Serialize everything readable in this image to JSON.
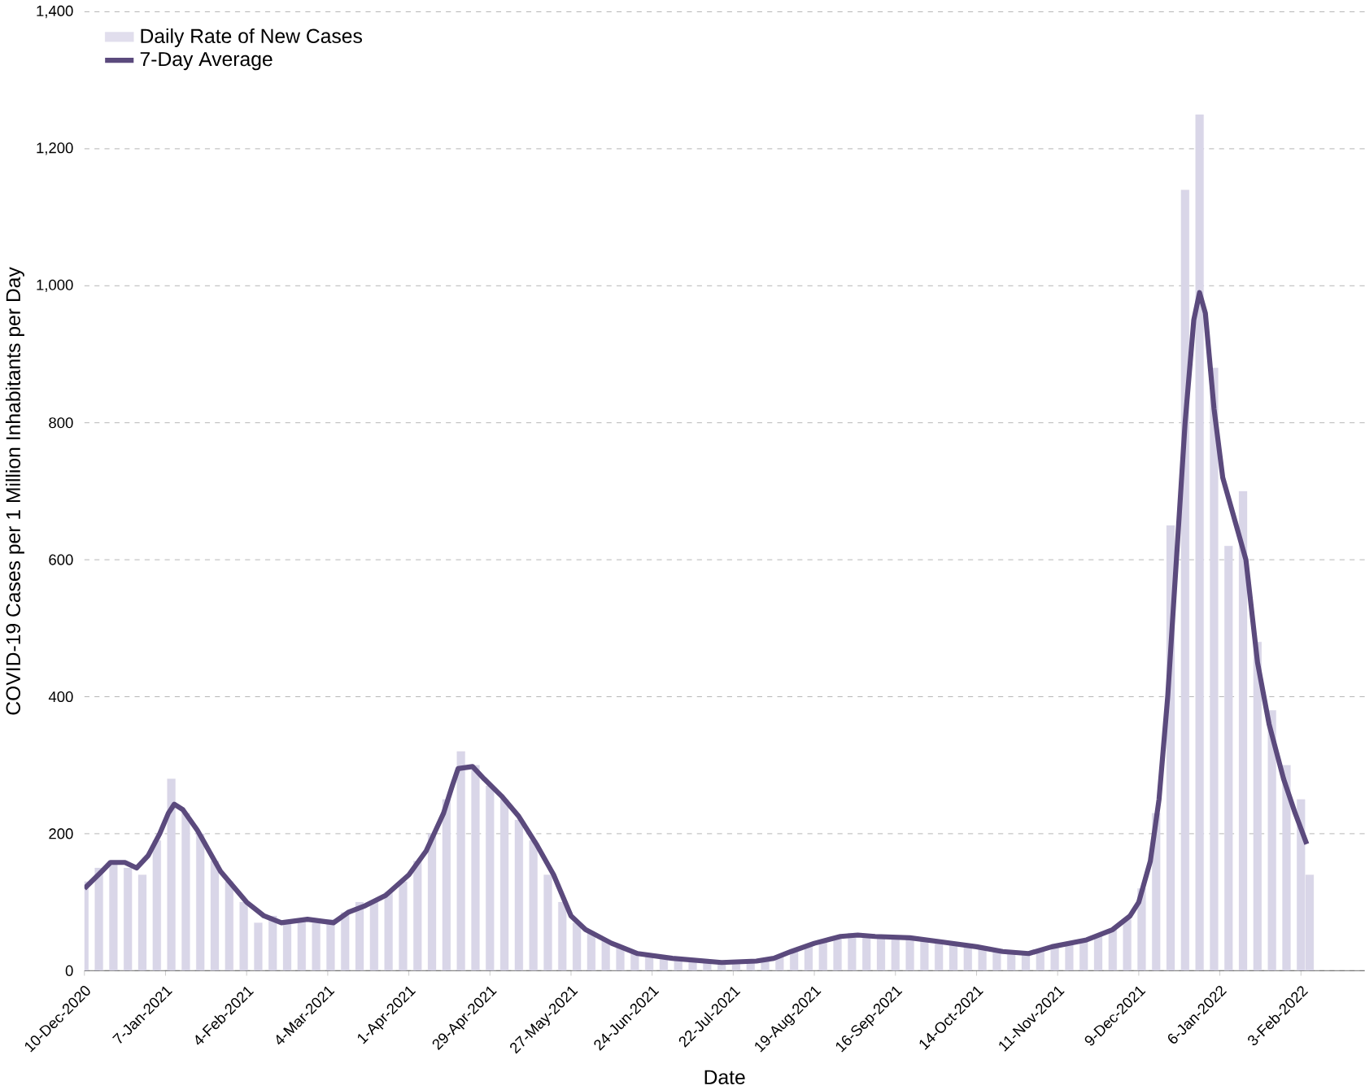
{
  "chart_data": {
    "type": "bar",
    "xlabel": "Date",
    "ylabel": "COVID-19 Cases per 1 Million Inhabitants per Day",
    "xlim": [
      "2020-12-10",
      "2022-02-25"
    ],
    "xticks": [
      {
        "value": "2020-12-10",
        "label": "10-Dec-2020"
      },
      {
        "value": "2021-01-07",
        "label": "7-Jan-2021"
      },
      {
        "value": "2021-02-04",
        "label": "4-Feb-2021"
      },
      {
        "value": "2021-03-04",
        "label": "4-Mar-2021"
      },
      {
        "value": "2021-04-01",
        "label": "1-Apr-2021"
      },
      {
        "value": "2021-04-29",
        "label": "29-Apr-2021"
      },
      {
        "value": "2021-05-27",
        "label": "27-May-2021"
      },
      {
        "value": "2021-06-24",
        "label": "24-Jun-2021"
      },
      {
        "value": "2021-07-22",
        "label": "22-Jul-2021"
      },
      {
        "value": "2021-08-19",
        "label": "19-Aug-2021"
      },
      {
        "value": "2021-09-16",
        "label": "16-Sep-2021"
      },
      {
        "value": "2021-10-14",
        "label": "14-Oct-2021"
      },
      {
        "value": "2021-11-11",
        "label": "11-Nov-2021"
      },
      {
        "value": "2021-12-09",
        "label": "9-Dec-2021"
      },
      {
        "value": "2022-01-06",
        "label": "6-Jan-2022"
      },
      {
        "value": "2022-02-03",
        "label": "3-Feb-2022"
      }
    ],
    "ylim": [
      0,
      1400
    ],
    "yticks": [
      0,
      200,
      400,
      600,
      800,
      {
        "value": 1000,
        "label": "1,000"
      },
      {
        "value": 1200,
        "label": "1,200"
      },
      {
        "value": 1400,
        "label": "1,400"
      }
    ],
    "grid": "y",
    "legend": "top left",
    "x": [
      "2020-12-10",
      "2020-12-15",
      "2020-12-20",
      "2020-12-25",
      "2020-12-30",
      "2021-01-04",
      "2021-01-09",
      "2021-01-14",
      "2021-01-19",
      "2021-01-24",
      "2021-01-29",
      "2021-02-03",
      "2021-02-08",
      "2021-02-13",
      "2021-02-18",
      "2021-02-23",
      "2021-02-28",
      "2021-03-05",
      "2021-03-10",
      "2021-03-15",
      "2021-03-20",
      "2021-03-25",
      "2021-03-30",
      "2021-04-04",
      "2021-04-09",
      "2021-04-14",
      "2021-04-19",
      "2021-04-24",
      "2021-04-29",
      "2021-05-04",
      "2021-05-09",
      "2021-05-14",
      "2021-05-19",
      "2021-05-24",
      "2021-05-29",
      "2021-06-03",
      "2021-06-08",
      "2021-06-13",
      "2021-06-18",
      "2021-06-23",
      "2021-06-28",
      "2021-07-03",
      "2021-07-08",
      "2021-07-13",
      "2021-07-18",
      "2021-07-23",
      "2021-07-28",
      "2021-08-02",
      "2021-08-07",
      "2021-08-12",
      "2021-08-17",
      "2021-08-22",
      "2021-08-27",
      "2021-09-01",
      "2021-09-06",
      "2021-09-11",
      "2021-09-16",
      "2021-09-21",
      "2021-09-26",
      "2021-10-01",
      "2021-10-06",
      "2021-10-11",
      "2021-10-16",
      "2021-10-21",
      "2021-10-26",
      "2021-10-31",
      "2021-11-05",
      "2021-11-10",
      "2021-11-15",
      "2021-11-20",
      "2021-11-25",
      "2021-11-30",
      "2021-12-05",
      "2021-12-10",
      "2021-12-15",
      "2021-12-20",
      "2021-12-25",
      "2021-12-30",
      "2022-01-04",
      "2022-01-09",
      "2022-01-14",
      "2022-01-19",
      "2022-01-24",
      "2022-01-29",
      "2022-02-03",
      "2022-02-06"
    ],
    "series": [
      {
        "name": "Daily Rate of New Cases",
        "color": "#d9d6e8",
        "values": [
          130,
          150,
          160,
          150,
          140,
          190,
          280,
          230,
          200,
          160,
          130,
          100,
          70,
          80,
          70,
          75,
          70,
          75,
          85,
          100,
          100,
          115,
          130,
          160,
          200,
          250,
          320,
          300,
          270,
          250,
          220,
          190,
          140,
          100,
          70,
          55,
          45,
          35,
          28,
          22,
          20,
          18,
          15,
          12,
          12,
          12,
          13,
          15,
          22,
          30,
          38,
          45,
          50,
          55,
          52,
          50,
          50,
          48,
          45,
          42,
          40,
          35,
          32,
          30,
          26,
          25,
          30,
          35,
          40,
          45,
          52,
          60,
          75,
          120,
          230,
          650,
          1140,
          1250,
          880,
          620,
          700,
          480,
          380,
          300,
          250,
          140
        ]
      },
      {
        "name": "7-Day Average",
        "type": "line",
        "color": "#5b4a7d",
        "x": [
          "2020-12-10",
          "2020-12-16",
          "2020-12-19",
          "2020-12-24",
          "2020-12-28",
          "2021-01-01",
          "2021-01-05",
          "2021-01-08",
          "2021-01-10",
          "2021-01-13",
          "2021-01-18",
          "2021-01-22",
          "2021-01-26",
          "2021-01-31",
          "2021-02-04",
          "2021-02-10",
          "2021-02-16",
          "2021-02-25",
          "2021-03-06",
          "2021-03-11",
          "2021-03-17",
          "2021-03-24",
          "2021-04-01",
          "2021-04-07",
          "2021-04-13",
          "2021-04-16",
          "2021-04-18",
          "2021-04-23",
          "2021-04-27",
          "2021-05-03",
          "2021-05-09",
          "2021-05-15",
          "2021-05-21",
          "2021-05-27",
          "2021-06-01",
          "2021-06-10",
          "2021-06-19",
          "2021-07-01",
          "2021-07-18",
          "2021-07-30",
          "2021-08-05",
          "2021-08-11",
          "2021-08-19",
          "2021-08-28",
          "2021-09-03",
          "2021-09-09",
          "2021-09-21",
          "2021-10-02",
          "2021-10-14",
          "2021-10-23",
          "2021-11-01",
          "2021-11-09",
          "2021-11-21",
          "2021-11-30",
          "2021-12-06",
          "2021-12-09",
          "2021-12-13",
          "2021-12-16",
          "2021-12-19",
          "2021-12-22",
          "2021-12-25",
          "2021-12-28",
          "2021-12-30",
          "2022-01-01",
          "2022-01-04",
          "2022-01-07",
          "2022-01-11",
          "2022-01-15",
          "2022-01-19",
          "2022-01-23",
          "2022-01-28",
          "2022-02-01",
          "2022-02-05"
        ],
        "values": [
          120,
          145,
          158,
          158,
          150,
          168,
          200,
          230,
          243,
          235,
          205,
          175,
          145,
          120,
          100,
          80,
          70,
          75,
          70,
          85,
          95,
          110,
          140,
          175,
          230,
          270,
          295,
          298,
          280,
          255,
          225,
          185,
          140,
          80,
          60,
          40,
          25,
          18,
          12,
          14,
          18,
          28,
          40,
          50,
          52,
          50,
          48,
          42,
          35,
          28,
          25,
          35,
          45,
          60,
          80,
          100,
          160,
          250,
          400,
          600,
          800,
          950,
          990,
          960,
          820,
          720,
          660,
          600,
          450,
          360,
          280,
          230,
          185
        ]
      }
    ]
  }
}
